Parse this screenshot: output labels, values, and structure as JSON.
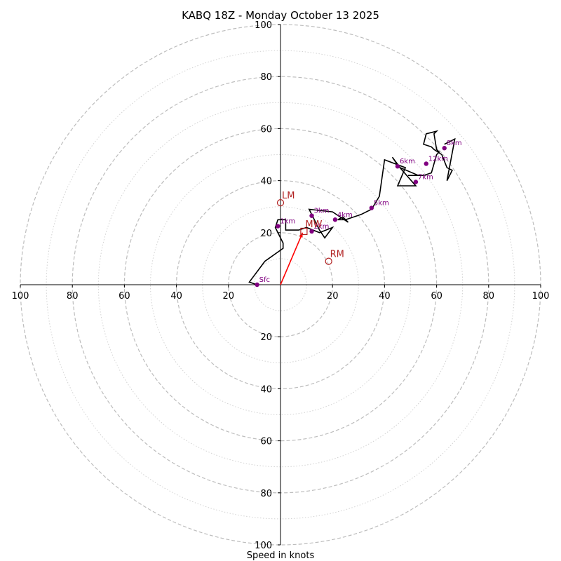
{
  "chart_data": {
    "type": "line",
    "subtype": "hodograph",
    "title": "KABQ 18Z - Monday October 13 2025",
    "xlabel": "Speed in knots",
    "ylabel": "",
    "xlim": [
      -100,
      100
    ],
    "ylim": [
      -100,
      100
    ],
    "ring_major": [
      20,
      40,
      60,
      80,
      100
    ],
    "ring_minor": [
      10,
      30,
      50,
      70,
      90
    ],
    "ticks": {
      "x": [
        {
          "value": -100,
          "label": "100"
        },
        {
          "value": -80,
          "label": "80"
        },
        {
          "value": -60,
          "label": "60"
        },
        {
          "value": -40,
          "label": "40"
        },
        {
          "value": -20,
          "label": "20"
        },
        {
          "value": 20,
          "label": "20"
        },
        {
          "value": 40,
          "label": "40"
        },
        {
          "value": 60,
          "label": "60"
        },
        {
          "value": 80,
          "label": "80"
        },
        {
          "value": 100,
          "label": "100"
        }
      ],
      "y": [
        {
          "value": 100,
          "label": "100"
        },
        {
          "value": 80,
          "label": "80"
        },
        {
          "value": 60,
          "label": "60"
        },
        {
          "value": 40,
          "label": "40"
        },
        {
          "value": 20,
          "label": "20"
        },
        {
          "value": -20,
          "label": "20"
        },
        {
          "value": -40,
          "label": "40"
        },
        {
          "value": -60,
          "label": "60"
        },
        {
          "value": -80,
          "label": "80"
        },
        {
          "value": -100,
          "label": "100"
        }
      ]
    },
    "hodograph": {
      "u": [
        -9,
        -12,
        -6,
        1,
        1,
        -2,
        -1,
        2,
        2,
        7,
        10,
        15,
        20,
        17,
        15,
        11,
        20,
        26,
        24,
        22,
        25,
        31,
        35,
        38,
        40,
        48,
        45,
        52,
        45,
        43,
        46,
        53,
        49,
        51,
        55,
        58,
        60,
        61,
        60,
        59,
        60,
        56,
        55,
        58,
        59,
        62,
        64,
        66,
        64,
        67,
        63
      ],
      "v": [
        0,
        1,
        9,
        14,
        16,
        22,
        25,
        25,
        21,
        21,
        22,
        20,
        22,
        18,
        21,
        29,
        28,
        24,
        26,
        25,
        25,
        27,
        29,
        34,
        48,
        45,
        38,
        38,
        46,
        49,
        45,
        42,
        42,
        42,
        42,
        43,
        50,
        51,
        52,
        58,
        59,
        58,
        54,
        53,
        52,
        50,
        45,
        44,
        40,
        56,
        54
      ]
    },
    "height_markers": [
      {
        "label": "Sfc",
        "u": -9,
        "v": 0
      },
      {
        "label": "1km",
        "u": -1,
        "v": 22.5
      },
      {
        "label": "2km",
        "u": 12,
        "v": 20.5
      },
      {
        "label": "3km",
        "u": 12,
        "v": 26.5
      },
      {
        "label": "4km",
        "u": 21,
        "v": 25
      },
      {
        "label": "5km",
        "u": 35,
        "v": 29.5
      },
      {
        "label": "6km",
        "u": 45,
        "v": 45.5
      },
      {
        "label": "7km",
        "u": 52,
        "v": 39.5
      },
      {
        "label": "8km",
        "u": 63,
        "v": 52.5
      },
      {
        "label": "12km",
        "u": 56,
        "v": 46.5
      }
    ],
    "storm_motion": [
      {
        "label": "LM",
        "u": 0,
        "v": 31.5,
        "marker": "circle"
      },
      {
        "label": "RM",
        "u": 18.5,
        "v": 9,
        "marker": "circle"
      },
      {
        "label": "MW",
        "u": 9,
        "v": 20.5,
        "marker": "square"
      }
    ],
    "mean_wind_vector": {
      "u": 8.5,
      "v": 20
    },
    "colors": {
      "hodograph": "#000000",
      "height": "#800080",
      "storm_motion": "#b22222",
      "mean_wind_vector": "#ff0000",
      "ring": "#bdbdbd"
    }
  }
}
